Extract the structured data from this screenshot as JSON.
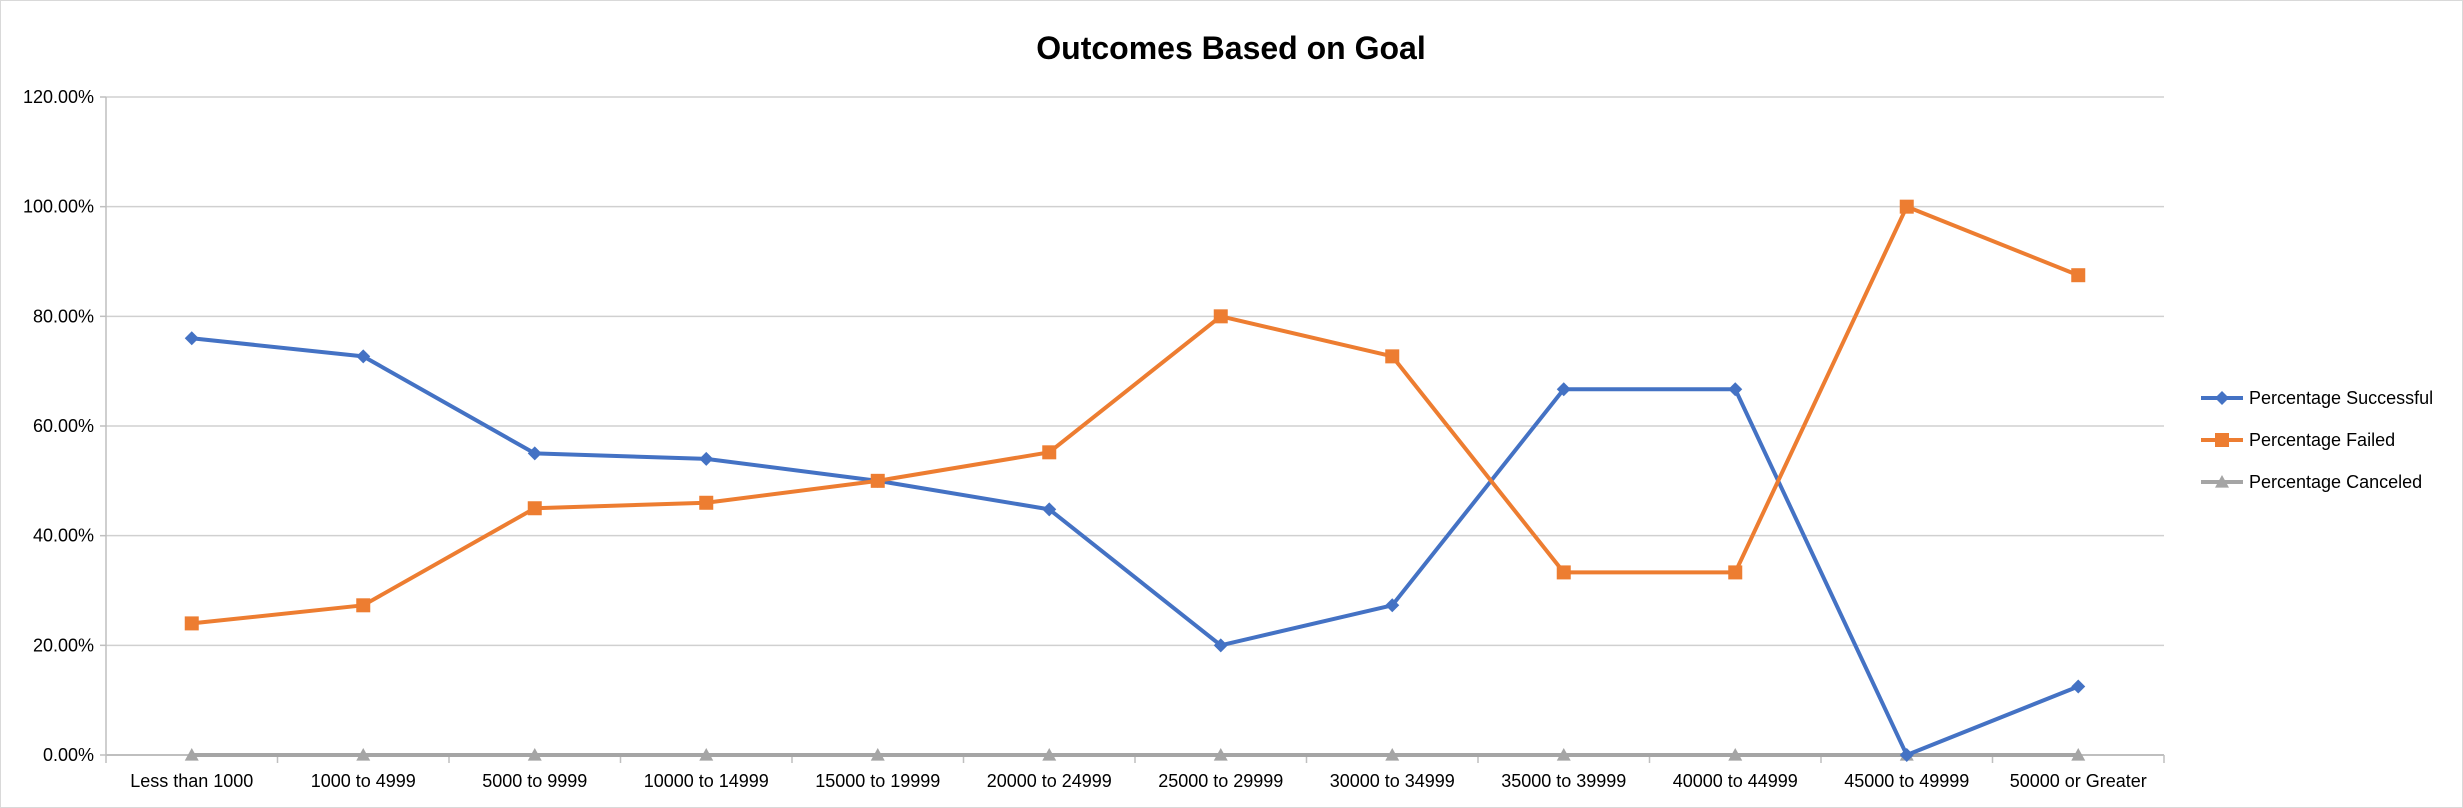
{
  "chart_data": {
    "type": "line",
    "title": "Outcomes Based on Goal",
    "xlabel": "",
    "ylabel": "",
    "categories": [
      "Less than 1000",
      "1000 to 4999",
      "5000 to 9999",
      "10000 to 14999",
      "15000 to 19999",
      "20000 to 24999",
      "25000 to 29999",
      "30000 to 34999",
      "35000 to 39999",
      "40000 to 44999",
      "45000 to 49999",
      "50000 or Greater"
    ],
    "ylim": [
      0,
      120
    ],
    "y_ticks": [
      0,
      20,
      40,
      60,
      80,
      100,
      120
    ],
    "y_tick_labels": [
      "0.00%",
      "20.00%",
      "40.00%",
      "60.00%",
      "80.00%",
      "100.00%",
      "120.00%"
    ],
    "grid": true,
    "legend_position": "right",
    "series": [
      {
        "name": "Percentage Successful",
        "color": "#4472C4",
        "marker": "diamond",
        "values": [
          76,
          72.7,
          55,
          54,
          50,
          44.8,
          20,
          27.3,
          66.7,
          66.7,
          0,
          12.5
        ]
      },
      {
        "name": "Percentage Failed",
        "color": "#ED7D31",
        "marker": "square",
        "values": [
          24,
          27.3,
          45,
          46,
          50,
          55.2,
          80,
          72.7,
          33.3,
          33.3,
          100,
          87.5
        ]
      },
      {
        "name": "Percentage Canceled",
        "color": "#A5A5A5",
        "marker": "triangle",
        "values": [
          0,
          0,
          0,
          0,
          0,
          0,
          0,
          0,
          0,
          0,
          0,
          0
        ]
      }
    ]
  }
}
